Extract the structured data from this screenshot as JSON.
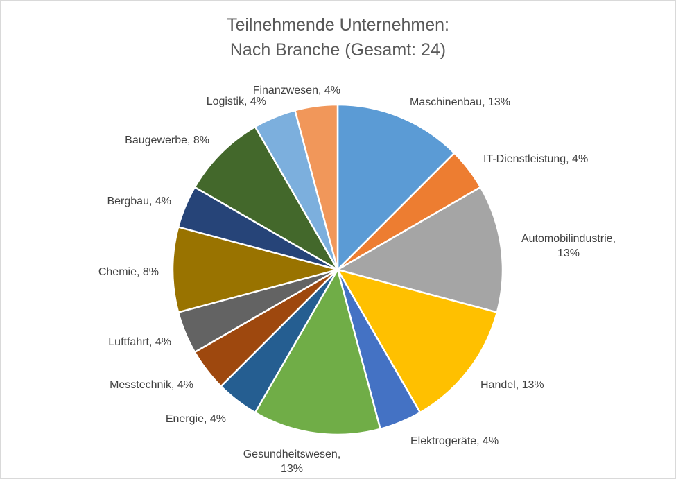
{
  "chart_data": {
    "type": "pie",
    "title_line1": "Teilnehmende Unternehmen:",
    "title_line2": "Nach Branche (Gesamt: 24)",
    "slices": [
      {
        "label": "Maschinenbau",
        "pct_text": "13%",
        "count": 3,
        "color": "#5b9bd5"
      },
      {
        "label": "IT-Dienstleistung",
        "pct_text": "4%",
        "count": 1,
        "color": "#ed7d31"
      },
      {
        "label": "Automobilindustrie,",
        "pct_text": "13%",
        "count": 3,
        "color": "#a5a5a5"
      },
      {
        "label": "Handel",
        "pct_text": "13%",
        "count": 3,
        "color": "#ffc000"
      },
      {
        "label": "Elektrogeräte",
        "pct_text": "4%",
        "count": 1,
        "color": "#4472c4"
      },
      {
        "label": "Gesundheitswesen,",
        "pct_text": "13%",
        "count": 3,
        "color": "#70ad47"
      },
      {
        "label": "Energie",
        "pct_text": "4%",
        "count": 1,
        "color": "#255e91"
      },
      {
        "label": "Messtechnik",
        "pct_text": "4%",
        "count": 1,
        "color": "#9e480e"
      },
      {
        "label": "Luftfahrt",
        "pct_text": "4%",
        "count": 1,
        "color": "#636363"
      },
      {
        "label": "Chemie",
        "pct_text": "8%",
        "count": 2,
        "color": "#997300"
      },
      {
        "label": "Bergbau",
        "pct_text": "4%",
        "count": 1,
        "color": "#264478"
      },
      {
        "label": "Baugewerbe",
        "pct_text": "8%",
        "count": 2,
        "color": "#43682b"
      },
      {
        "label": "Logistik",
        "pct_text": "4%",
        "count": 1,
        "color": "#7cafdd"
      },
      {
        "label": "Finanzwesen",
        "pct_text": "4%",
        "count": 1,
        "color": "#f1975a"
      }
    ]
  }
}
